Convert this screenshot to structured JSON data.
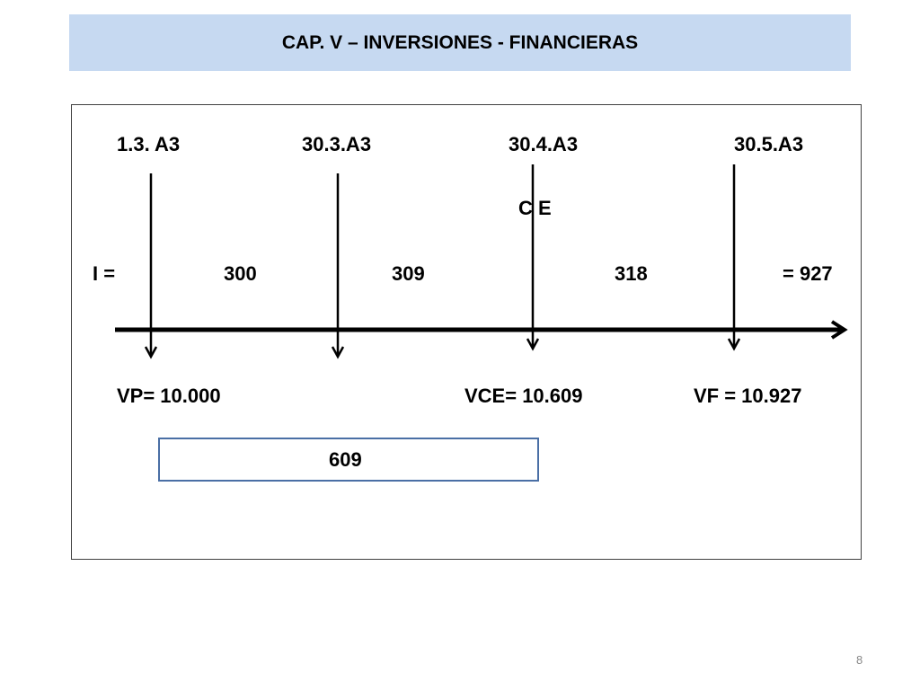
{
  "slide": {
    "title": "CAP. V – INVERSIONES - FINANCIERAS",
    "page_number": "8"
  },
  "timeline": {
    "dates": [
      "1.3. A3",
      "30.3.A3",
      "30.4.A3",
      "30.5.A3"
    ],
    "ce_label": "C E",
    "interest_prefix": "I =",
    "interests": [
      "300",
      "309",
      "318"
    ],
    "interest_total": "= 927",
    "values": {
      "vp": "VP= 10.000",
      "vce": "VCE= 10.609",
      "vf": "VF = 10.927"
    },
    "box_value": "609"
  }
}
